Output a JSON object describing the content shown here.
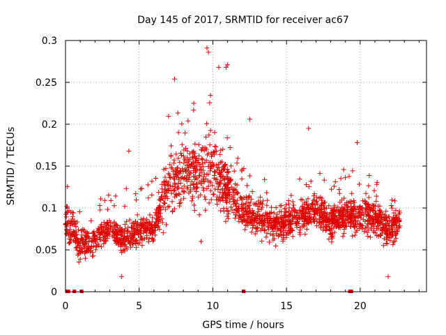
{
  "chart_data": {
    "type": "scatter",
    "title": "Day 145 of 2017, SRMTID for receiver ac67",
    "xlabel": "GPS time / hours",
    "ylabel": "SRMTID / TECUs",
    "xlim": [
      0,
      24.5
    ],
    "ylim": [
      0,
      0.3
    ],
    "x_ticks": [
      0,
      5,
      10,
      15,
      20
    ],
    "y_ticks": [
      0,
      0.05,
      0.1,
      0.15,
      0.2,
      0.25,
      0.3
    ],
    "x_tick_labels": [
      "0",
      "5",
      "10",
      "15",
      "20"
    ],
    "y_tick_labels": [
      "0",
      "0.05",
      "0.1",
      "0.15",
      "0.2",
      "0.25",
      "0.3"
    ],
    "grid": true,
    "marker": "+",
    "series_color": "#e00000",
    "x_range_of_data": [
      0,
      22.7
    ],
    "zero_value_points_x": [
      0.1,
      0.2,
      0.6,
      1.1,
      12.1,
      19.3,
      19.4
    ],
    "notable_points": [
      {
        "x": 9.6,
        "y": 0.291
      },
      {
        "x": 9.7,
        "y": 0.286
      },
      {
        "x": 10.9,
        "y": 0.268
      },
      {
        "x": 11.0,
        "y": 0.271
      },
      {
        "x": 7.4,
        "y": 0.254
      },
      {
        "x": 10.4,
        "y": 0.268
      },
      {
        "x": 12.5,
        "y": 0.206
      },
      {
        "x": 16.5,
        "y": 0.195
      },
      {
        "x": 19.8,
        "y": 0.178
      },
      {
        "x": 4.3,
        "y": 0.168
      },
      {
        "x": 3.8,
        "y": 0.018
      },
      {
        "x": 21.9,
        "y": 0.018
      },
      {
        "x": 9.2,
        "y": 0.06
      }
    ],
    "points_per_hour": 95,
    "trend": [
      {
        "hour": 0,
        "center": 0.08,
        "spread": 0.028,
        "high_tail": 0.07
      },
      {
        "hour": 0.5,
        "center": 0.075,
        "spread": 0.03,
        "high_tail": 0.08
      },
      {
        "hour": 1,
        "center": 0.055,
        "spread": 0.02,
        "high_tail": 0.05
      },
      {
        "hour": 2,
        "center": 0.06,
        "spread": 0.02,
        "high_tail": 0.05
      },
      {
        "hour": 3,
        "center": 0.075,
        "spread": 0.02,
        "high_tail": 0.05
      },
      {
        "hour": 4,
        "center": 0.06,
        "spread": 0.02,
        "high_tail": 0.07
      },
      {
        "hour": 5,
        "center": 0.075,
        "spread": 0.02,
        "high_tail": 0.05
      },
      {
        "hour": 6,
        "center": 0.075,
        "spread": 0.02,
        "high_tail": 0.06
      },
      {
        "hour": 7,
        "center": 0.13,
        "spread": 0.04,
        "high_tail": 0.09
      },
      {
        "hour": 8,
        "center": 0.14,
        "spread": 0.045,
        "high_tail": 0.09
      },
      {
        "hour": 9,
        "center": 0.14,
        "spread": 0.05,
        "high_tail": 0.1
      },
      {
        "hour": 10,
        "center": 0.145,
        "spread": 0.05,
        "high_tail": 0.11
      },
      {
        "hour": 11,
        "center": 0.12,
        "spread": 0.04,
        "high_tail": 0.08
      },
      {
        "hour": 12,
        "center": 0.095,
        "spread": 0.025,
        "high_tail": 0.06
      },
      {
        "hour": 13,
        "center": 0.09,
        "spread": 0.025,
        "high_tail": 0.05
      },
      {
        "hour": 14,
        "center": 0.08,
        "spread": 0.025,
        "high_tail": 0.05
      },
      {
        "hour": 15,
        "center": 0.08,
        "spread": 0.025,
        "high_tail": 0.05
      },
      {
        "hour": 16,
        "center": 0.09,
        "spread": 0.025,
        "high_tail": 0.05
      },
      {
        "hour": 17,
        "center": 0.095,
        "spread": 0.025,
        "high_tail": 0.05
      },
      {
        "hour": 18,
        "center": 0.085,
        "spread": 0.025,
        "high_tail": 0.05
      },
      {
        "hour": 19,
        "center": 0.09,
        "spread": 0.025,
        "high_tail": 0.06
      },
      {
        "hour": 20,
        "center": 0.09,
        "spread": 0.025,
        "high_tail": 0.06
      },
      {
        "hour": 21,
        "center": 0.085,
        "spread": 0.025,
        "high_tail": 0.05
      },
      {
        "hour": 22,
        "center": 0.075,
        "spread": 0.025,
        "high_tail": 0.04
      },
      {
        "hour": 22.7,
        "center": 0.085,
        "spread": 0.015,
        "high_tail": 0.02
      }
    ]
  }
}
